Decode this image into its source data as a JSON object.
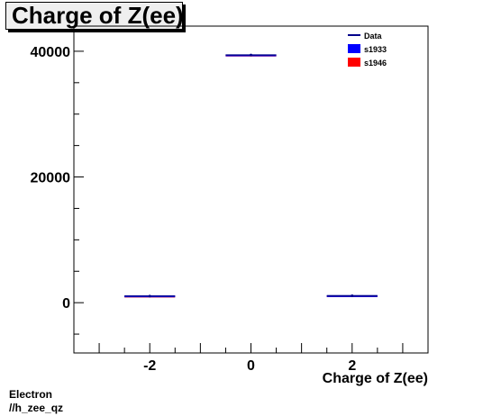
{
  "chart_data": {
    "type": "histogram",
    "title": "Charge of Z(ee)",
    "xlabel": "Charge of Z(ee)",
    "ylabel": "",
    "xlim": [
      -3.5,
      3.5
    ],
    "ylim": [
      -8000,
      44000
    ],
    "xticks": [
      -2,
      0,
      2
    ],
    "yticks": [
      0,
      20000,
      40000
    ],
    "xtick_labels": [
      "-2",
      "0",
      "2"
    ],
    "ytick_labels": [
      "0",
      "20000",
      "40000"
    ],
    "bin_width": 1,
    "series": [
      {
        "name": "Data",
        "color": "#00008b",
        "style": "points",
        "x": [
          -2,
          0,
          2
        ],
        "y": [
          1050,
          39400,
          1100
        ]
      },
      {
        "name": "s1933",
        "color": "#0000ff",
        "style": "step",
        "x": [
          -2,
          0,
          2
        ],
        "y": [
          1000,
          39350,
          1050
        ]
      },
      {
        "name": "s1946",
        "color": "#ff0000",
        "style": "step",
        "x": [
          -2,
          0,
          2
        ],
        "y": [
          980,
          39300,
          1020
        ]
      }
    ],
    "legend": {
      "placement": "top-right",
      "entries": [
        {
          "label": "Data",
          "marker": "line",
          "color": "#00008b"
        },
        {
          "label": "s1933",
          "marker": "box",
          "color": "#0000ff"
        },
        {
          "label": "s1946",
          "marker": "box",
          "color": "#ff0000"
        }
      ]
    }
  },
  "footer": {
    "line1": "Electron",
    "line2": "//h_zee_qz"
  }
}
